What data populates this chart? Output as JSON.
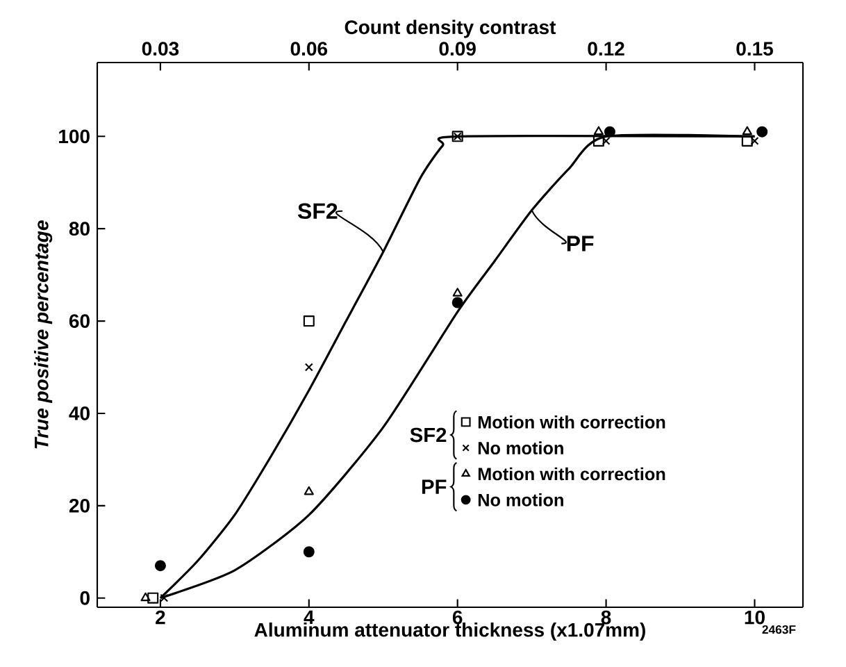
{
  "chart_data": {
    "type": "scatter",
    "xlabel": "Aluminum attenuator thickness (x1.07mm)",
    "ylabel": "True positive percentage",
    "x2label": "Count density contrast",
    "xlim": [
      1.15,
      10.65
    ],
    "xticks": [
      2,
      4,
      6,
      8,
      10
    ],
    "x2lim": [
      0.01725,
      0.15975
    ],
    "x2ticks": [
      0.03,
      0.06,
      0.09,
      0.12,
      0.15
    ],
    "ylim": [
      -2,
      116
    ],
    "yticks": [
      0,
      20,
      40,
      60,
      80,
      100
    ],
    "legend": "bottom right",
    "series": [
      {
        "name": "Motion with correction",
        "color": "#000000",
        "marker": "square",
        "x": [
          1.9,
          4,
          6,
          7.9,
          9.9
        ],
        "values": [
          0,
          60,
          100,
          99,
          99
        ]
      },
      {
        "name": "No motion",
        "color": "#000000",
        "marker": "cross",
        "x": [
          2.05,
          4,
          6,
          8,
          10
        ],
        "values": [
          0,
          50,
          100,
          99,
          99
        ]
      },
      {
        "name": "Motion with correction",
        "color": "#000000",
        "marker": "triangle",
        "x": [
          1.8,
          4,
          6,
          7.9,
          9.9
        ],
        "values": [
          0,
          23,
          66,
          101,
          101
        ]
      },
      {
        "name": "No motion",
        "color": "#000000",
        "marker": "circle",
        "x": [
          2,
          4,
          6,
          8.05,
          10.1
        ],
        "values": [
          7,
          10,
          64,
          101,
          101
        ]
      },
      {
        "type": "line",
        "color": "#000000",
        "marker": "none",
        "x": [
          2,
          2.5,
          3,
          3.5,
          4,
          4.5,
          5,
          5.5,
          5.8,
          6,
          10
        ],
        "values": [
          0,
          8,
          18,
          31,
          45,
          60,
          75,
          91,
          98,
          100,
          100
        ]
      },
      {
        "type": "line",
        "color": "#000000",
        "marker": "none",
        "x": [
          2,
          3,
          4,
          5,
          6,
          6.5,
          7,
          7.5,
          8,
          10
        ],
        "values": [
          0,
          6,
          18,
          37,
          62,
          73,
          84,
          93,
          100,
          100
        ]
      }
    ],
    "annotations": [
      {
        "text": "SF2",
        "x": 5,
        "y": 75
      },
      {
        "text": "PF",
        "x": 7,
        "y": 84
      },
      "SF2",
      "PF",
      "2463F"
    ]
  }
}
